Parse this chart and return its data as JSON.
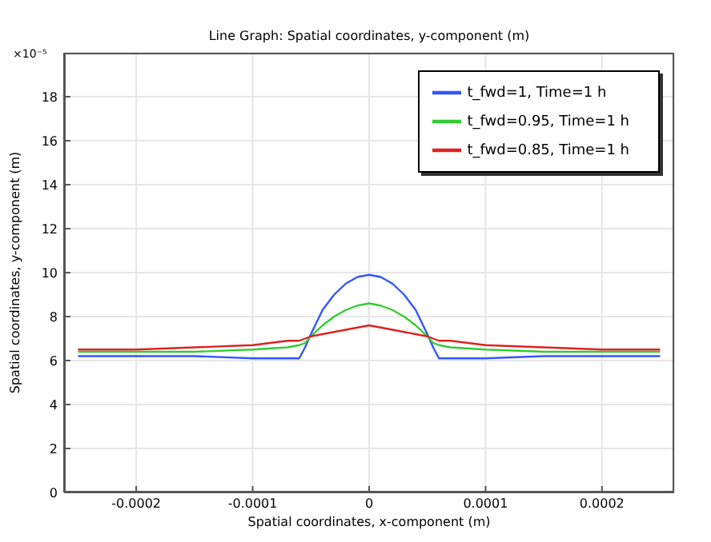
{
  "chart_data": {
    "type": "line",
    "title": "Line Graph: Spatial coordinates, y-component (m)",
    "xlabel": "Spatial coordinates, x-component (m)",
    "ylabel": "Spatial coordinates, y-component (m)",
    "annotations": [
      "×10⁻⁵"
    ],
    "x": [
      -0.00025,
      -0.0002,
      -0.00015,
      -0.0001,
      -7e-05,
      -6e-05,
      -5.5e-05,
      -5e-05,
      -4e-05,
      -3e-05,
      -2e-05,
      -1e-05,
      0,
      1e-05,
      2e-05,
      3e-05,
      4e-05,
      5e-05,
      5.5e-05,
      6e-05,
      7e-05,
      0.0001,
      0.00015,
      0.0002,
      0.00025
    ],
    "series": [
      {
        "name": "t_fwd=1, Time=1 h",
        "color": "#3355ff",
        "values": [
          6.2,
          6.2,
          6.2,
          6.1,
          6.1,
          6.1,
          6.6,
          7.2,
          8.3,
          9.0,
          9.5,
          9.8,
          9.9,
          9.8,
          9.5,
          9.0,
          8.3,
          7.2,
          6.6,
          6.1,
          6.1,
          6.1,
          6.2,
          6.2,
          6.2
        ]
      },
      {
        "name": "t_fwd=0.95, Time=1 h",
        "color": "#33cc33",
        "values": [
          6.4,
          6.4,
          6.4,
          6.5,
          6.6,
          6.7,
          6.8,
          7.1,
          7.6,
          8.0,
          8.3,
          8.5,
          8.6,
          8.5,
          8.3,
          8.0,
          7.6,
          7.1,
          6.8,
          6.7,
          6.6,
          6.5,
          6.4,
          6.4,
          6.4
        ]
      },
      {
        "name": "t_fwd=0.85, Time=1 h",
        "color": "#dd2222",
        "values": [
          6.5,
          6.5,
          6.6,
          6.7,
          6.9,
          6.9,
          7.0,
          7.1,
          7.2,
          7.3,
          7.4,
          7.5,
          7.6,
          7.5,
          7.4,
          7.3,
          7.2,
          7.1,
          7.0,
          6.9,
          6.9,
          6.7,
          6.6,
          6.5,
          6.5
        ]
      }
    ],
    "xlim": [
      -0.000262,
      0.000262
    ],
    "xticks": [
      -0.0002,
      -0.0001,
      0,
      0.0001,
      0.0002
    ],
    "ylim": [
      0,
      20
    ],
    "yticks": [
      0,
      2,
      4,
      6,
      8,
      10,
      12,
      14,
      16,
      18
    ],
    "grid": true,
    "legend": "top right",
    "marker": "none",
    "line_style": "solid"
  }
}
